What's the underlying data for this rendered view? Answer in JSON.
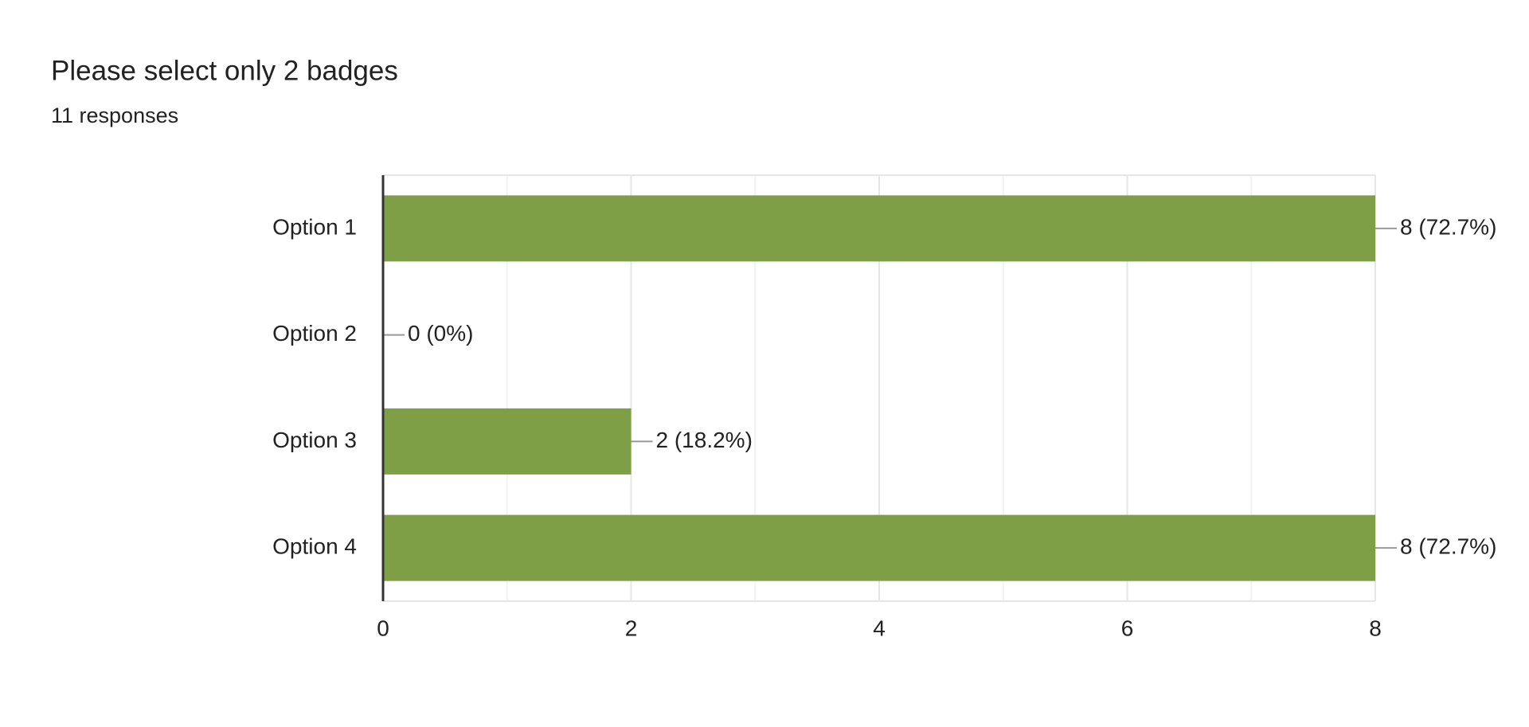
{
  "chart_data": {
    "type": "bar",
    "orientation": "horizontal",
    "title": "Please select only 2 badges",
    "subtitle": "11 responses",
    "categories": [
      "Option 1",
      "Option 2",
      "Option 3",
      "Option 4"
    ],
    "values": [
      8,
      0,
      2,
      8
    ],
    "value_labels": [
      "8 (72.7%)",
      "0 (0%)",
      "2 (18.2%)",
      "8 (72.7%)"
    ],
    "color": "#7e9f45",
    "xlim": [
      0,
      8
    ],
    "xticks": [
      0,
      2,
      4,
      6,
      8
    ],
    "xminorticks": [
      1,
      3,
      5,
      7
    ],
    "grid": true
  }
}
